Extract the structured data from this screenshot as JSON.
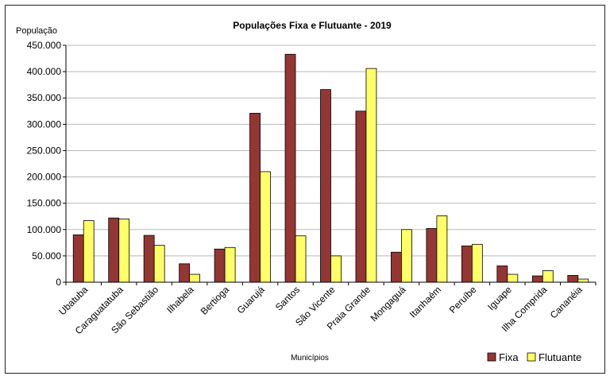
{
  "chart_data": {
    "type": "bar",
    "title": "Populações Fixa e Flutuante - 2019",
    "ylabel": "População",
    "xlabel": "Municípios",
    "ylim": [
      0,
      450000
    ],
    "yticks": [
      0,
      50000,
      100000,
      150000,
      200000,
      250000,
      300000,
      350000,
      400000,
      450000
    ],
    "ytick_labels": [
      "0",
      "50.000",
      "100.000",
      "150.000",
      "200.000",
      "250.000",
      "300.000",
      "350.000",
      "400.000",
      "450.000"
    ],
    "grid": true,
    "legend_position": "bottom-right",
    "categories": [
      "Ubatuba",
      "Caraguatatuba",
      "São Sebastião",
      "Ilhabela",
      "Bertioga",
      "Guarujá",
      "Santos",
      "São Vicente",
      "Praia Grande",
      "Mongaguá",
      "Itanhaém",
      "Peruíbe",
      "Iguape",
      "Ilha Comprida",
      "Cananéia"
    ],
    "series": [
      {
        "name": "Fixa",
        "color": "#943634",
        "values": [
          90000,
          122000,
          89000,
          35000,
          63000,
          321000,
          433000,
          366000,
          325000,
          57000,
          102000,
          69000,
          31000,
          12000,
          13000
        ]
      },
      {
        "name": "Flutuante",
        "color": "#FFFF66",
        "values": [
          117000,
          120000,
          70000,
          15000,
          66000,
          210000,
          88000,
          50000,
          406000,
          100000,
          126000,
          72000,
          15000,
          22000,
          6000
        ]
      }
    ]
  }
}
